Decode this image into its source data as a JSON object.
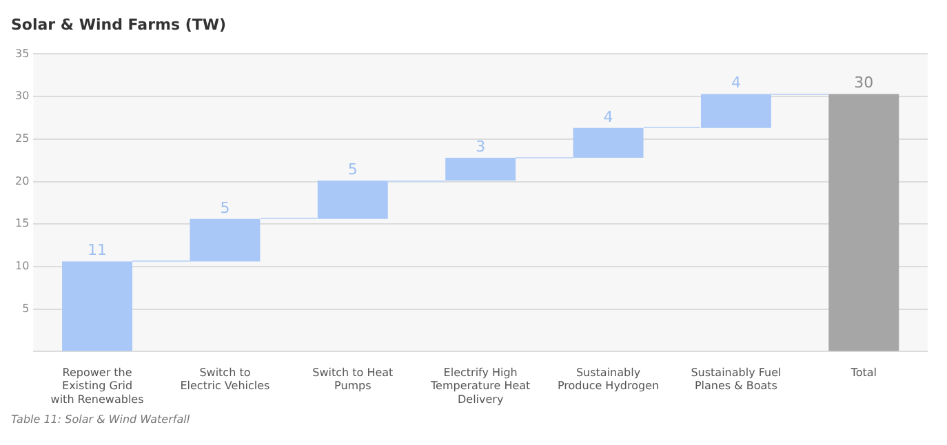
{
  "chart_data": {
    "type": "bar",
    "title": "Solar & Wind Farms (TW)",
    "categories": [
      "Repower the Existing Grid with Renewables",
      "Switch to Electric Vehicles",
      "Switch to Heat Pumps",
      "Electrify High Temperature Heat Delivery",
      "Sustainably Produce Hydrogen",
      "Sustainably Fuel Planes & Boats",
      "Total"
    ],
    "values": [
      10.6,
      5.0,
      4.5,
      2.7,
      3.5,
      4.0,
      30.3
    ],
    "base": [
      0,
      10.6,
      15.6,
      20.1,
      22.8,
      26.3,
      0
    ],
    "colors": [
      "#a9c8f7",
      "#a9c8f7",
      "#a9c8f7",
      "#a9c8f7",
      "#a9c8f7",
      "#a9c8f7",
      "#a6a6a7"
    ],
    "value_labels": [
      "11",
      "5",
      "5",
      "3",
      "4",
      "4",
      "30"
    ],
    "ylim": [
      0,
      35
    ],
    "yticks": [
      {
        "value": 0,
        "label": null
      },
      5,
      10,
      15,
      20,
      25,
      30,
      35
    ],
    "grid": "y",
    "legend": false,
    "annotations": [
      "Table 11: Solar & Wind Waterfall"
    ]
  }
}
